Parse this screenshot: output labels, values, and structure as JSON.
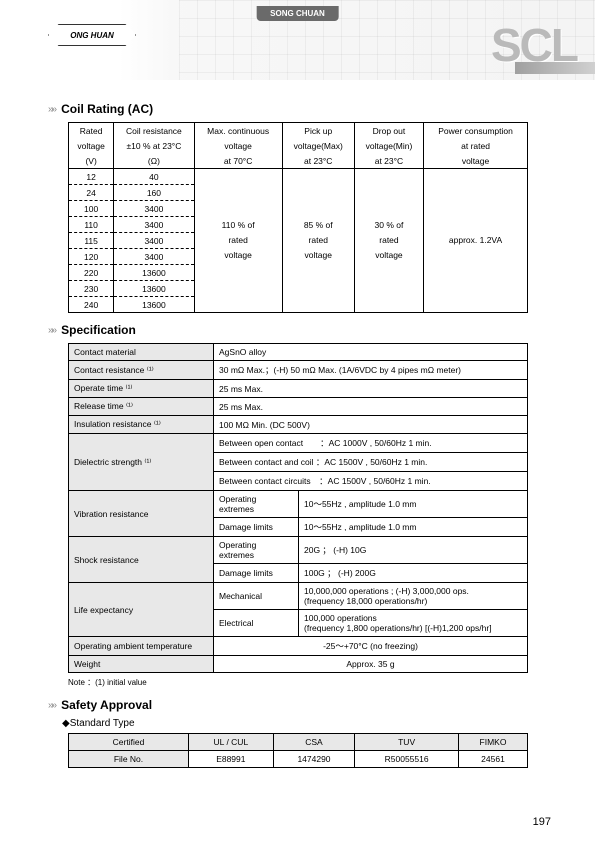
{
  "brand": "SONG CHUAN",
  "logo_text": "ONG  HUAN",
  "product_code": "SCL",
  "page_number": "197",
  "sections": {
    "coil": {
      "title": "Coil Rating (AC)"
    },
    "spec": {
      "title": "Specification"
    },
    "safety": {
      "title": "Safety Approval"
    }
  },
  "coil_table": {
    "headers": {
      "r0": [
        "Rated",
        "Coil resistance",
        "Max. continuous",
        "Pick up",
        "Drop out",
        "Power consumption"
      ],
      "r1": [
        "voltage",
        "±10 % at 23°C",
        "voltage",
        "voltage(Max)",
        "voltage(Min)",
        "at rated"
      ],
      "r2": [
        "(V)",
        "(Ω)",
        "at 70°C",
        "at 23°C",
        "at 23°C",
        "voltage"
      ]
    },
    "rows": [
      [
        "12",
        "40"
      ],
      [
        "24",
        "160"
      ],
      [
        "100",
        "3400"
      ],
      [
        "110",
        "3400"
      ],
      [
        "115",
        "3400"
      ],
      [
        "120",
        "3400"
      ],
      [
        "220",
        "13600"
      ],
      [
        "230",
        "13600"
      ],
      [
        "240",
        "13600"
      ]
    ],
    "merged": {
      "max_cont": "110 % of\nrated\nvoltage",
      "pickup": "85 % of\nrated\nvoltage",
      "dropout": "30 % of\nrated\nvoltage",
      "power": "approx. 1.2VA"
    }
  },
  "spec_table": {
    "contact_material": {
      "label": "Contact material",
      "val": "AgSnO alloy"
    },
    "contact_res": {
      "label": "Contact resistance ⁽¹⁾",
      "val": "30 mΩ Max.；(-H) 50 mΩ Max. (1A/6VDC by 4 pipes mΩ meter)"
    },
    "operate_time": {
      "label": "Operate time ⁽¹⁾",
      "val": "25 ms Max."
    },
    "release_time": {
      "label": "Release time ⁽¹⁾",
      "val": "25 ms Max."
    },
    "insulation": {
      "label": "Insulation resistance ⁽¹⁾",
      "val": "100 MΩ Min. (DC 500V)"
    },
    "dielectric": {
      "label": "Dielectric strength ⁽¹⁾",
      "r1": "Between open contact　　：AC 1000V , 50/60Hz 1 min.",
      "r2": "Between contact and coil ：AC 1500V , 50/60Hz 1 min.",
      "r3": "Between contact circuits　：AC 1500V , 50/60Hz 1 min."
    },
    "vibration": {
      "label": "Vibration resistance",
      "r1a": "Operating extremes",
      "r1b": "10～55Hz , amplitude 1.0 mm",
      "r2a": "Damage limits",
      "r2b": "10～55Hz , amplitude 1.0 mm"
    },
    "shock": {
      "label": "Shock resistance",
      "r1a": "Operating extremes",
      "r1b": "20G ； (-H) 10G",
      "r2a": "Damage limits",
      "r2b": "100G ； (-H) 200G"
    },
    "life": {
      "label": "Life expectancy",
      "r1a": "Mechanical",
      "r1b": "10,000,000 operations ; (-H) 3,000,000 ops.\n(frequency 18,000 operations/hr)",
      "r2a": "Electrical",
      "r2b": "100,000 operations\n(frequency 1,800 operations/hr) [(-H)1,200 ops/hr]"
    },
    "oat": {
      "label": "Operating ambient temperature",
      "val": "-25～+70°C (no freezing)"
    },
    "weight": {
      "label": "Weight",
      "val": "Approx. 35 g"
    }
  },
  "note": "Note ：(1) initial value",
  "safety": {
    "subtitle": "◆Standard Type",
    "headers": [
      "Certified",
      "UL / CUL",
      "CSA",
      "TUV",
      "FIMKO"
    ],
    "row": [
      "File No.",
      "E88991",
      "1474290",
      "R50055516",
      "24561"
    ]
  }
}
